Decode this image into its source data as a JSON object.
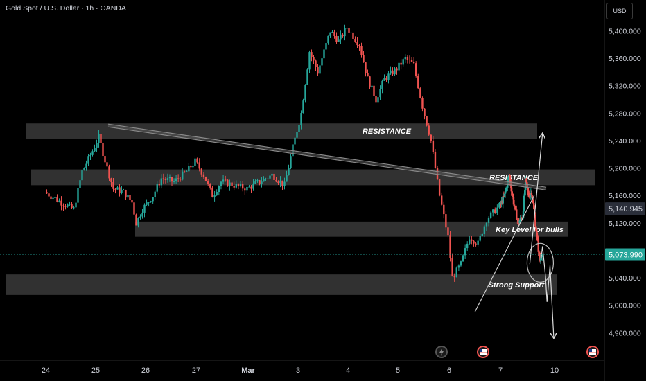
{
  "header": {
    "symbol_line": "Gold Spot / U.S. Dollar · 1h · OANDA",
    "currency": "USD"
  },
  "colors": {
    "background": "#000000",
    "bull": "#26a69a",
    "bear": "#ef5350",
    "zone": "#3a3a3a",
    "trendline": "#cfcfcf",
    "last_price_tag": "#26a69a",
    "ref_price_tag": "#2a2e39"
  },
  "chart_data": {
    "type": "candlestick",
    "title": "Gold Spot / U.S. Dollar · 1h · OANDA",
    "y_axis": {
      "ticks": [
        5400,
        5360,
        5320,
        5280,
        5240,
        5200,
        5160,
        5120,
        5080,
        5040,
        5000,
        4960
      ],
      "tick_labels": [
        "5,400.000",
        "5,360.000",
        "5,320.000",
        "5,280.000",
        "5,240.000",
        "5,200.000",
        "5,160.000",
        "5,120.000",
        "5,080.000",
        "5,040.000",
        "5,000.000",
        "4,960.000"
      ],
      "range": [
        4940,
        5420
      ]
    },
    "x_axis": {
      "tick_labels": [
        "24",
        "25",
        "26",
        "27",
        "Mar",
        "3",
        "4",
        "5",
        "6",
        "7",
        "10"
      ],
      "range": [
        "Feb 23",
        "Mar 10"
      ]
    },
    "price_tags": [
      {
        "label": "5,140.945",
        "value": 5140.945,
        "kind": "reference"
      },
      {
        "label": "5,073.990",
        "value": 5073.99,
        "kind": "last"
      }
    ],
    "zones": [
      {
        "label": "RESISTANCE",
        "low": 5243,
        "high": 5265
      },
      {
        "label": "RESISTANCE",
        "low": 5175,
        "high": 5198
      },
      {
        "label": "Key Level for bulls",
        "low": 5100,
        "high": 5122
      },
      {
        "label": "Strong Support",
        "low": 5015,
        "high": 5045
      }
    ],
    "trendlines": [
      {
        "kind": "descending-channel",
        "from": [
          "Feb 24 06:00",
          5262
        ],
        "to": [
          "Mar 6 13:00",
          5170
        ]
      },
      {
        "kind": "ascending",
        "from": [
          "Mar 3 12:00",
          4990
        ],
        "to": [
          "Mar 5 21:00",
          5160
        ]
      }
    ],
    "projections": [
      {
        "kind": "bullish",
        "points": [
          [
            "Mar 5 15:00",
            5060
          ],
          [
            "Mar 6 08:00",
            5250
          ]
        ]
      },
      {
        "kind": "bearish",
        "points": [
          [
            "Mar 6 06:00",
            5066
          ],
          [
            "Mar 6 08:00",
            5086
          ],
          [
            "Mar 6 12:00",
            5042
          ],
          [
            "Mar 6 14:00",
            5005
          ],
          [
            "Mar 6 18:00",
            5058
          ],
          [
            "Mar 6 23:00",
            4953
          ]
        ]
      }
    ],
    "path": [
      [
        "Feb 23 00:00",
        5165
      ],
      [
        "Feb 23 08:00",
        5150
      ],
      [
        "Feb 23 14:00",
        5140
      ],
      [
        "Feb 23 18:00",
        5195
      ],
      [
        "Feb 23 23:00",
        5225
      ],
      [
        "Feb 24 02:00",
        5245
      ],
      [
        "Feb 24 06:00",
        5200
      ],
      [
        "Feb 24 09:00",
        5170
      ],
      [
        "Feb 24 14:00",
        5165
      ],
      [
        "Feb 24 18:00",
        5150
      ],
      [
        "Feb 24 20:00",
        5120
      ],
      [
        "Feb 24 23:00",
        5140
      ],
      [
        "Feb 25 04:00",
        5160
      ],
      [
        "Feb 25 08:00",
        5185
      ],
      [
        "Feb 25 14:00",
        5180
      ],
      [
        "Feb 25 20:00",
        5195
      ],
      [
        "Feb 26 00:00",
        5210
      ],
      [
        "Feb 26 04:00",
        5190
      ],
      [
        "Feb 26 08:00",
        5160
      ],
      [
        "Feb 26 12:00",
        5180
      ],
      [
        "Feb 26 18:00",
        5175
      ],
      [
        "Feb 27 00:00",
        5170
      ],
      [
        "Feb 27 06:00",
        5180
      ],
      [
        "Feb 27 12:00",
        5190
      ],
      [
        "Feb 27 18:00",
        5175
      ],
      [
        "Feb 27 22:00",
        5230
      ],
      [
        "Feb 28 02:00",
        5280
      ],
      [
        "Feb 28 06:00",
        5370
      ],
      [
        "Feb 28 10:00",
        5340
      ],
      [
        "Feb 28 16:00",
        5400
      ],
      [
        "Feb 28 20:00",
        5385
      ],
      [
        "Mar 1 00:00",
        5405
      ],
      [
        "Mar 1 06:00",
        5380
      ],
      [
        "Mar 1 10:00",
        5330
      ],
      [
        "Mar 1 14:00",
        5300
      ],
      [
        "Mar 1 18:00",
        5330
      ],
      [
        "Mar 2 00:00",
        5345
      ],
      [
        "Mar 2 04:00",
        5360
      ],
      [
        "Mar 2 08:00",
        5350
      ],
      [
        "Mar 2 12:00",
        5290
      ],
      [
        "Mar 2 16:00",
        5240
      ],
      [
        "Mar 2 20:00",
        5160
      ],
      [
        "Mar 3 00:00",
        5100
      ],
      [
        "Mar 3 02:00",
        5040
      ],
      [
        "Mar 3 06:00",
        5060
      ],
      [
        "Mar 3 10:00",
        5100
      ],
      [
        "Mar 3 14:00",
        5090
      ],
      [
        "Mar 3 18:00",
        5125
      ],
      [
        "Mar 4 00:00",
        5145
      ],
      [
        "Mar 4 06:00",
        5160
      ],
      [
        "Mar 4 12:00",
        5190
      ],
      [
        "Mar 4 18:00",
        5150
      ],
      [
        "Mar 5 00:00",
        5120
      ],
      [
        "Mar 5 06:00",
        5130
      ],
      [
        "Mar 5 10:00",
        5180
      ],
      [
        "Mar 5 14:00",
        5160
      ],
      [
        "Mar 5 18:00",
        5165
      ],
      [
        "Mar 5 22:00",
        5130
      ],
      [
        "Mar 6 02:00",
        5090
      ],
      [
        "Mar 6 05:00",
        5065
      ],
      [
        "Mar 6 07:00",
        5074
      ]
    ]
  }
}
